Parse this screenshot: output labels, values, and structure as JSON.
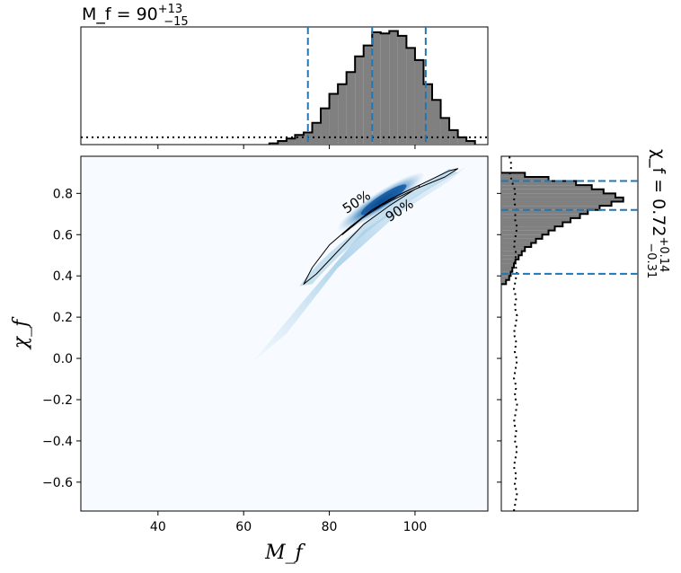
{
  "chart_data": [
    {
      "type": "heatmap",
      "panel": "joint",
      "xlabel": "M_f",
      "ylabel": "χ_f",
      "xlim": [
        22,
        117
      ],
      "ylim": [
        -0.74,
        0.98
      ],
      "xticks": [
        40,
        60,
        80,
        100
      ],
      "yticks": [
        -0.6,
        -0.4,
        -0.2,
        0.0,
        0.2,
        0.4,
        0.6,
        0.8
      ],
      "xtick_labels": [
        "40",
        "60",
        "80",
        "100"
      ],
      "ytick_labels": [
        "−0.6",
        "−0.4",
        "−0.2",
        "0.0",
        "0.2",
        "0.4",
        "0.6",
        "0.8"
      ],
      "colormap": "Blues",
      "density_peak": {
        "x": 92,
        "y": 0.76
      },
      "contours": [
        {
          "label": "50%",
          "points": [
            [
              83,
              0.6
            ],
            [
              86,
              0.65
            ],
            [
              90,
              0.72
            ],
            [
              94,
              0.77
            ],
            [
              98,
              0.81
            ],
            [
              101,
              0.84
            ],
            [
              101,
              0.83
            ],
            [
              97,
              0.79
            ],
            [
              92,
              0.74
            ],
            [
              87,
              0.67
            ],
            [
              84,
              0.62
            ]
          ]
        },
        {
          "label": "90%",
          "points": [
            [
              74,
              0.36
            ],
            [
              76,
              0.44
            ],
            [
              80,
              0.55
            ],
            [
              85,
              0.64
            ],
            [
              90,
              0.72
            ],
            [
              96,
              0.79
            ],
            [
              102,
              0.85
            ],
            [
              108,
              0.91
            ],
            [
              110,
              0.92
            ],
            [
              107,
              0.88
            ],
            [
              100,
              0.82
            ],
            [
              94,
              0.74
            ],
            [
              88,
              0.65
            ],
            [
              82,
              0.52
            ],
            [
              77,
              0.41
            ],
            [
              74,
              0.36
            ]
          ]
        }
      ]
    },
    {
      "type": "bar",
      "panel": "top-marginal",
      "variable": "M_f",
      "title_main": "M_f = 90",
      "title_sup": "+13",
      "title_sub": "−15",
      "bin_edges": [
        66,
        68,
        70,
        72,
        74,
        76,
        78,
        80,
        82,
        84,
        86,
        88,
        90,
        92,
        94,
        96,
        98,
        100,
        102,
        104,
        106,
        108,
        110,
        112,
        114
      ],
      "values": [
        1,
        3,
        5,
        8,
        10,
        18,
        30,
        42,
        50,
        60,
        73,
        82,
        93,
        92,
        94,
        90,
        80,
        70,
        50,
        37,
        22,
        12,
        6,
        3
      ],
      "prior_line_level": 6,
      "median": 90,
      "credible_interval": [
        75,
        102.5
      ],
      "color": "#808080"
    },
    {
      "type": "bar",
      "panel": "right-marginal",
      "variable": "χ_f",
      "annotation_main": "χ_f = 0.72",
      "annotation_sup": "+0.14",
      "annotation_sub": "−0.31",
      "orientation": "horizontal",
      "bin_edges": [
        0.36,
        0.38,
        0.4,
        0.42,
        0.44,
        0.46,
        0.48,
        0.5,
        0.52,
        0.54,
        0.56,
        0.58,
        0.6,
        0.62,
        0.64,
        0.66,
        0.68,
        0.7,
        0.72,
        0.74,
        0.76,
        0.78,
        0.8,
        0.82,
        0.84,
        0.86,
        0.88,
        0.9
      ],
      "values": [
        6,
        10,
        12,
        14,
        16,
        18,
        22,
        26,
        30,
        38,
        44,
        52,
        60,
        68,
        78,
        88,
        100,
        110,
        125,
        140,
        155,
        145,
        130,
        115,
        95,
        60,
        30
      ],
      "prior_line_level": 18,
      "median": 0.72,
      "credible_interval": [
        0.41,
        0.86
      ],
      "color": "#808080"
    }
  ],
  "colors": {
    "accent": "#1f77b4",
    "hist_fill": "#808080",
    "density_low": "#f7fbff",
    "density_high": "#08306b"
  }
}
